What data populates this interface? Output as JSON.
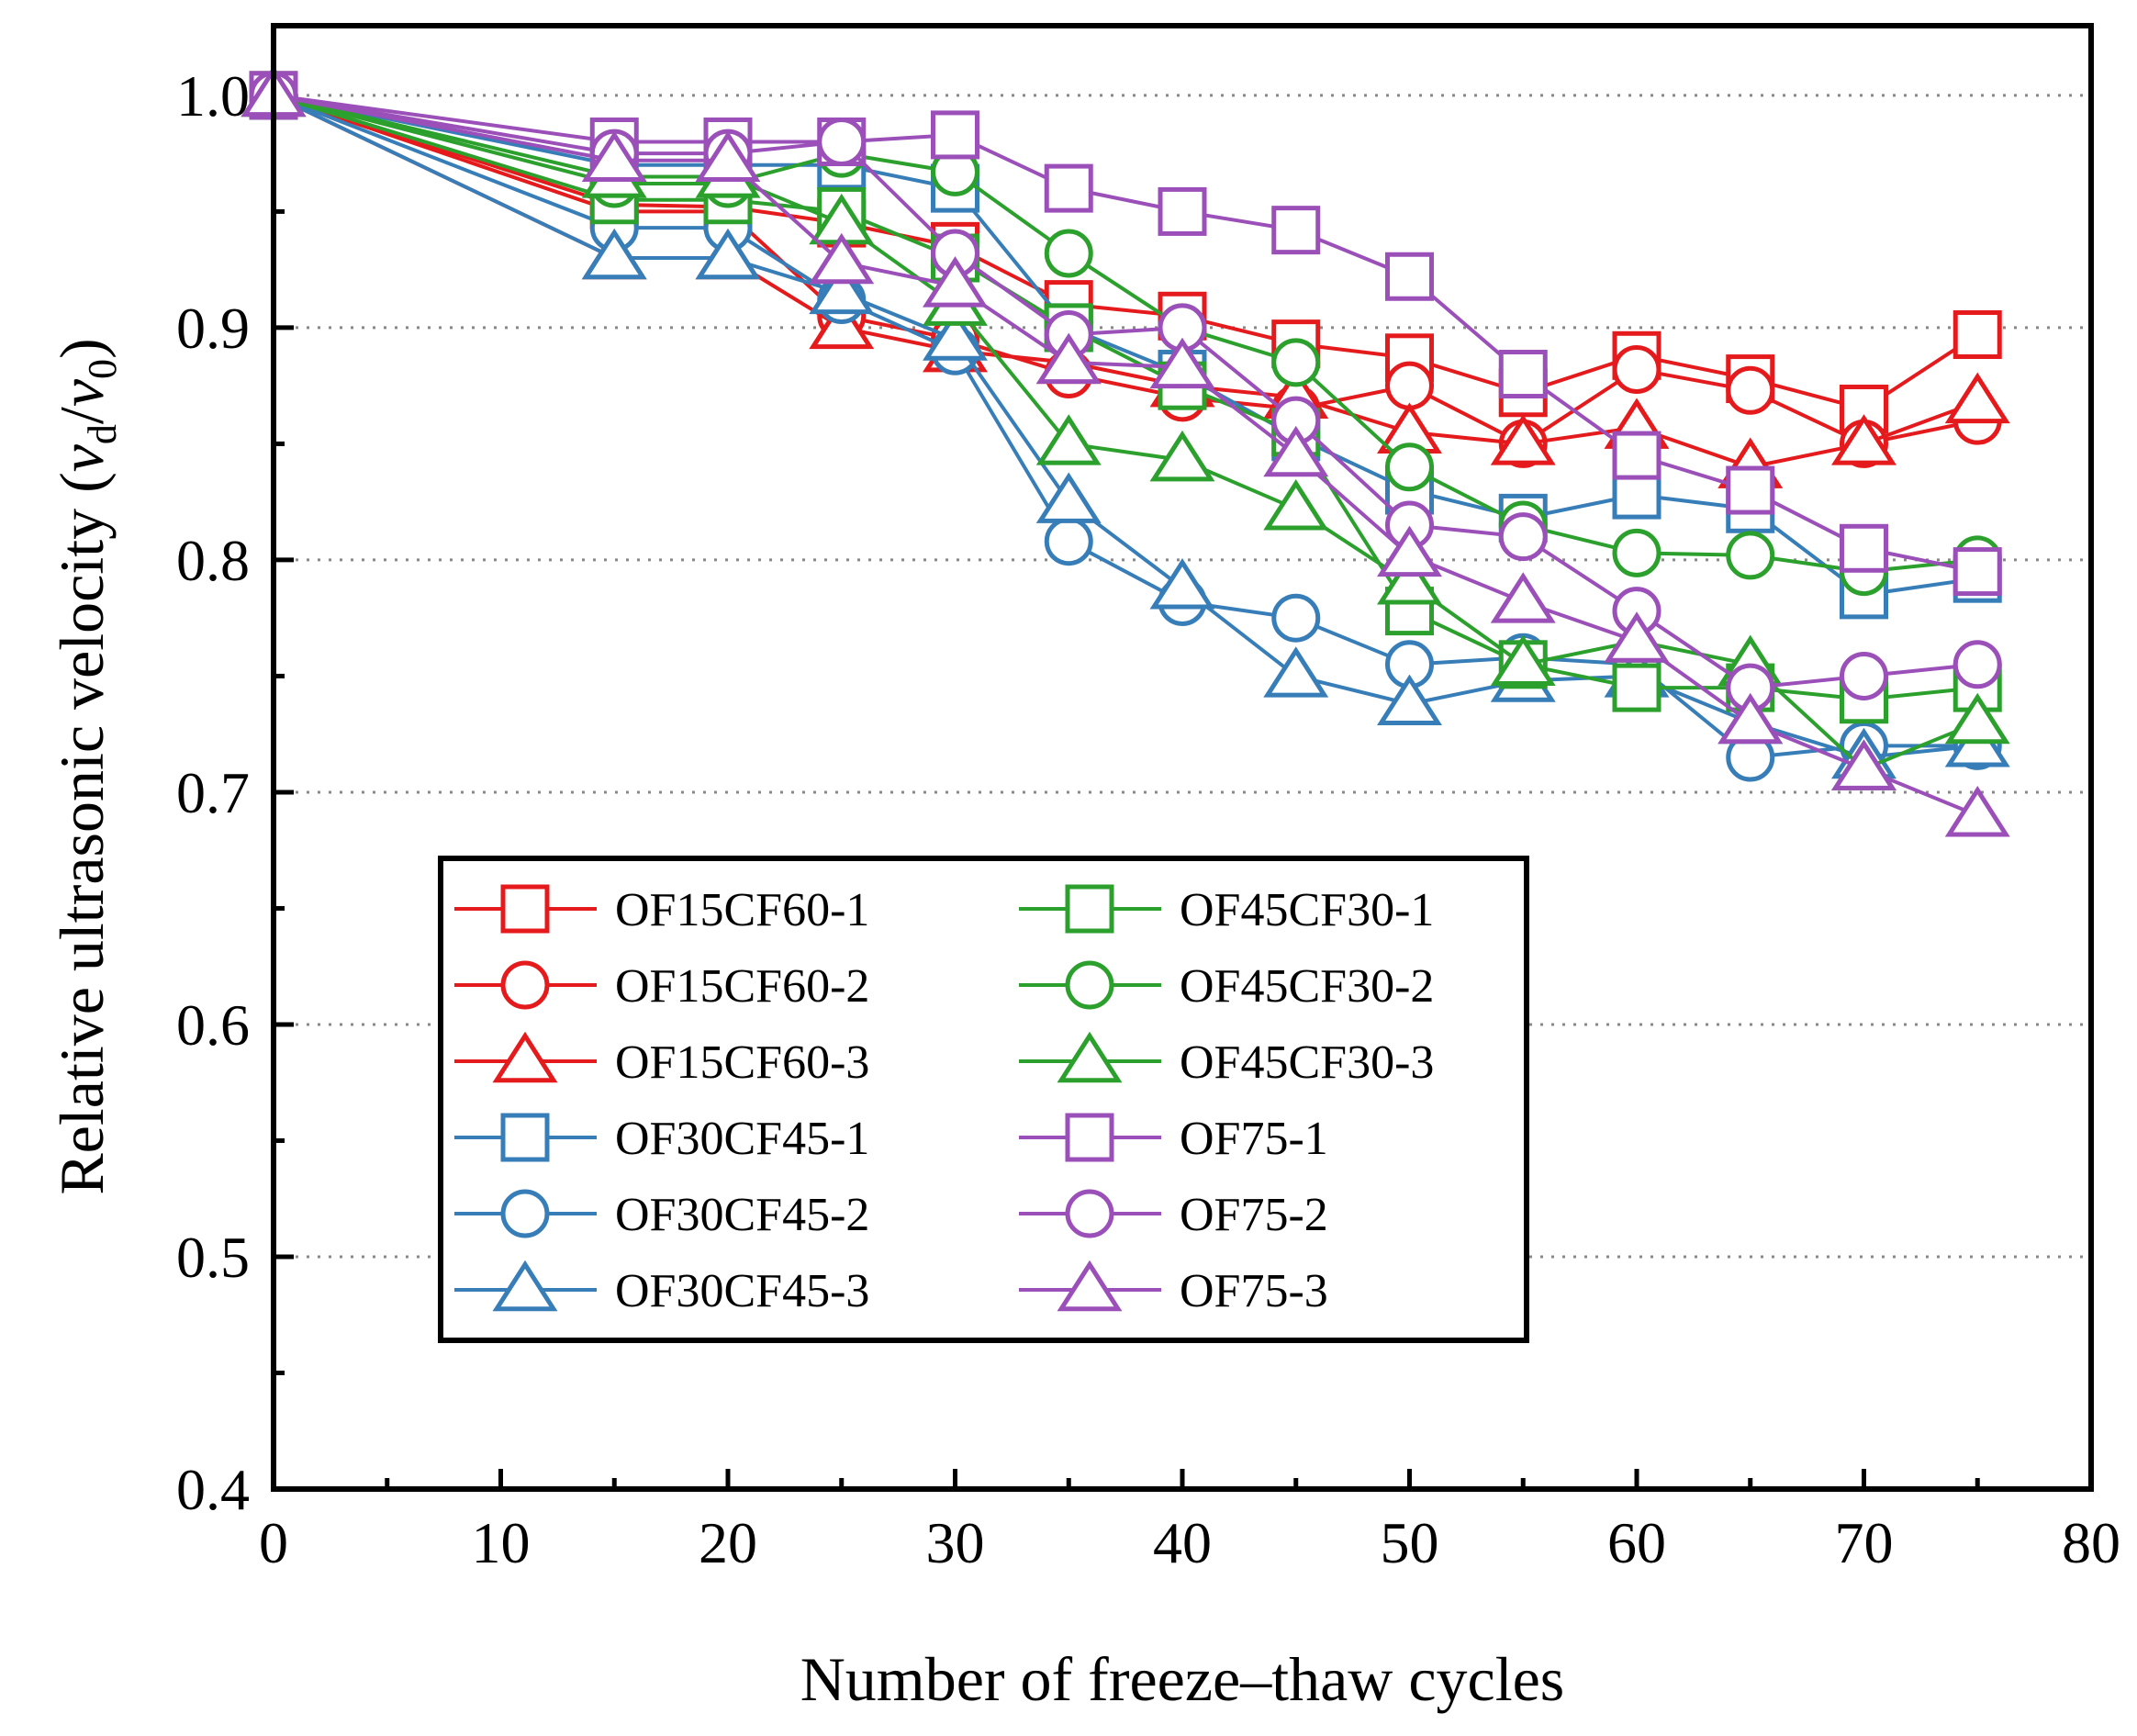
{
  "chart_data": {
    "type": "line",
    "xlabel": "Number of freeze–thaw cycles",
    "ylabel": {
      "prefix": "Relative ultrasonic velocity (",
      "num_var": "v",
      "num_sub": "d",
      "slash": "/",
      "den_var": "v",
      "den_sub": "0",
      "suffix": ")"
    },
    "xlim": [
      0,
      80
    ],
    "ylim": [
      0.4,
      1.03
    ],
    "x_ticks": [
      0,
      10,
      20,
      30,
      40,
      50,
      60,
      70,
      80
    ],
    "x_tick_labels": [
      "0",
      "10",
      "20",
      "30",
      "40",
      "50",
      "60",
      "70",
      "80"
    ],
    "y_ticks": [
      0.4,
      0.5,
      0.6,
      0.7,
      0.8,
      0.9,
      1.0
    ],
    "y_tick_labels": [
      "0.4",
      "0.5",
      "0.6",
      "0.7",
      "0.8",
      "0.9",
      "1.0"
    ],
    "grid": "horizontal dotted at major y ticks",
    "legend": {
      "placement": "lower-center",
      "columns": 2,
      "frame": true
    },
    "x": [
      0,
      15,
      20,
      25,
      30,
      35,
      40,
      45,
      50,
      55,
      60,
      65,
      70,
      75
    ],
    "series": [
      {
        "name": "OF15CF60-1",
        "color": "#e41a1c",
        "marker": "square",
        "values": [
          1.0,
          0.953,
          0.952,
          0.945,
          0.935,
          0.91,
          0.905,
          0.893,
          0.887,
          0.872,
          0.888,
          0.878,
          0.865,
          0.897
        ]
      },
      {
        "name": "OF15CF60-2",
        "color": "#e41a1c",
        "marker": "circle",
        "values": [
          1.0,
          0.95,
          0.95,
          0.905,
          0.895,
          0.88,
          0.87,
          0.865,
          0.875,
          0.85,
          0.882,
          0.873,
          0.85,
          0.86
        ]
      },
      {
        "name": "OF15CF60-3",
        "color": "#e41a1c",
        "marker": "triangle",
        "values": [
          1.0,
          0.93,
          0.93,
          0.9,
          0.89,
          0.885,
          0.875,
          0.87,
          0.855,
          0.85,
          0.857,
          0.84,
          0.85,
          0.868
        ]
      },
      {
        "name": "OF30CF45-1",
        "color": "#377eb8",
        "marker": "square",
        "values": [
          1.0,
          0.97,
          0.97,
          0.97,
          0.96,
          0.9,
          0.88,
          0.853,
          0.83,
          0.818,
          0.828,
          0.822,
          0.785,
          0.792
        ]
      },
      {
        "name": "OF30CF45-2",
        "color": "#377eb8",
        "marker": "circle",
        "values": [
          1.0,
          0.943,
          0.943,
          0.912,
          0.89,
          0.808,
          0.782,
          0.775,
          0.755,
          0.758,
          0.755,
          0.715,
          0.72,
          0.72
        ]
      },
      {
        "name": "OF30CF45-3",
        "color": "#377eb8",
        "marker": "triangle",
        "values": [
          1.0,
          0.93,
          0.93,
          0.915,
          0.895,
          0.825,
          0.788,
          0.75,
          0.738,
          0.748,
          0.75,
          0.73,
          0.715,
          0.72
        ]
      },
      {
        "name": "OF45CF30-1",
        "color": "#2ca02c",
        "marker": "square",
        "values": [
          1.0,
          0.955,
          0.955,
          0.95,
          0.93,
          0.9,
          0.875,
          0.855,
          0.778,
          0.755,
          0.745,
          0.745,
          0.74,
          0.745
        ]
      },
      {
        "name": "OF45CF30-2",
        "color": "#2ca02c",
        "marker": "circle",
        "values": [
          1.0,
          0.962,
          0.962,
          0.975,
          0.967,
          0.932,
          0.9,
          0.885,
          0.84,
          0.815,
          0.803,
          0.802,
          0.795,
          0.8
        ]
      },
      {
        "name": "OF45CF30-3",
        "color": "#2ca02c",
        "marker": "triangle",
        "values": [
          1.0,
          0.965,
          0.965,
          0.945,
          0.91,
          0.85,
          0.843,
          0.822,
          0.79,
          0.755,
          0.765,
          0.755,
          0.71,
          0.73
        ]
      },
      {
        "name": "OF75-1",
        "color": "#9b4fb8",
        "marker": "square",
        "values": [
          1.0,
          0.98,
          0.98,
          0.98,
          0.983,
          0.96,
          0.95,
          0.942,
          0.922,
          0.88,
          0.845,
          0.83,
          0.805,
          0.795
        ]
      },
      {
        "name": "OF75-2",
        "color": "#9b4fb8",
        "marker": "circle",
        "values": [
          1.0,
          0.975,
          0.975,
          0.98,
          0.932,
          0.897,
          0.9,
          0.86,
          0.815,
          0.81,
          0.778,
          0.745,
          0.75,
          0.755
        ]
      },
      {
        "name": "OF75-3",
        "color": "#9b4fb8",
        "marker": "triangle",
        "values": [
          1.0,
          0.972,
          0.972,
          0.928,
          0.918,
          0.885,
          0.883,
          0.845,
          0.802,
          0.782,
          0.765,
          0.73,
          0.71,
          0.69
        ]
      }
    ]
  }
}
